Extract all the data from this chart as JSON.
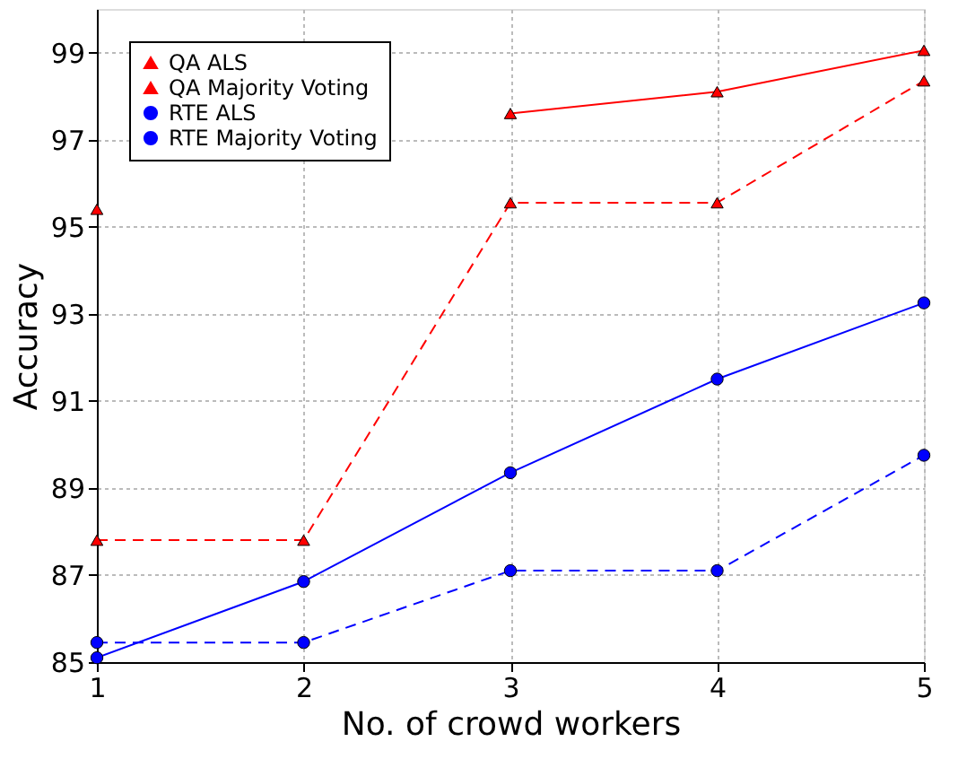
{
  "chart_data": {
    "type": "line",
    "xlabel": "No. of crowd workers",
    "ylabel": "Accuracy",
    "x": [
      1,
      2,
      3,
      4,
      5
    ],
    "xlim": [
      1,
      5
    ],
    "xticks": [
      1,
      2,
      3,
      4,
      5
    ],
    "ylim": [
      85,
      100
    ],
    "yticks": [
      85,
      87,
      89,
      91,
      93,
      95,
      97,
      99
    ],
    "grid": true,
    "legend": "top left",
    "series": [
      {
        "name": "QA ALS",
        "color": "#ff0000",
        "marker": "triangle",
        "line_style": "solid",
        "values": [
          95.4,
          null,
          97.6,
          98.1,
          99.05
        ]
      },
      {
        "name": "QA Majority Voting",
        "color": "#ff0000",
        "marker": "triangle",
        "line_style": "dashed",
        "values": [
          87.8,
          87.8,
          95.55,
          95.55,
          98.35
        ]
      },
      {
        "name": "RTE ALS",
        "color": "#0000ff",
        "marker": "circle",
        "line_style": "solid",
        "values": [
          85.1,
          86.85,
          89.35,
          91.5,
          93.25
        ]
      },
      {
        "name": "RTE Majority Voting",
        "color": "#0000ff",
        "marker": "circle",
        "line_style": "dashed",
        "values": [
          85.45,
          85.45,
          87.1,
          87.1,
          89.75
        ]
      }
    ]
  }
}
